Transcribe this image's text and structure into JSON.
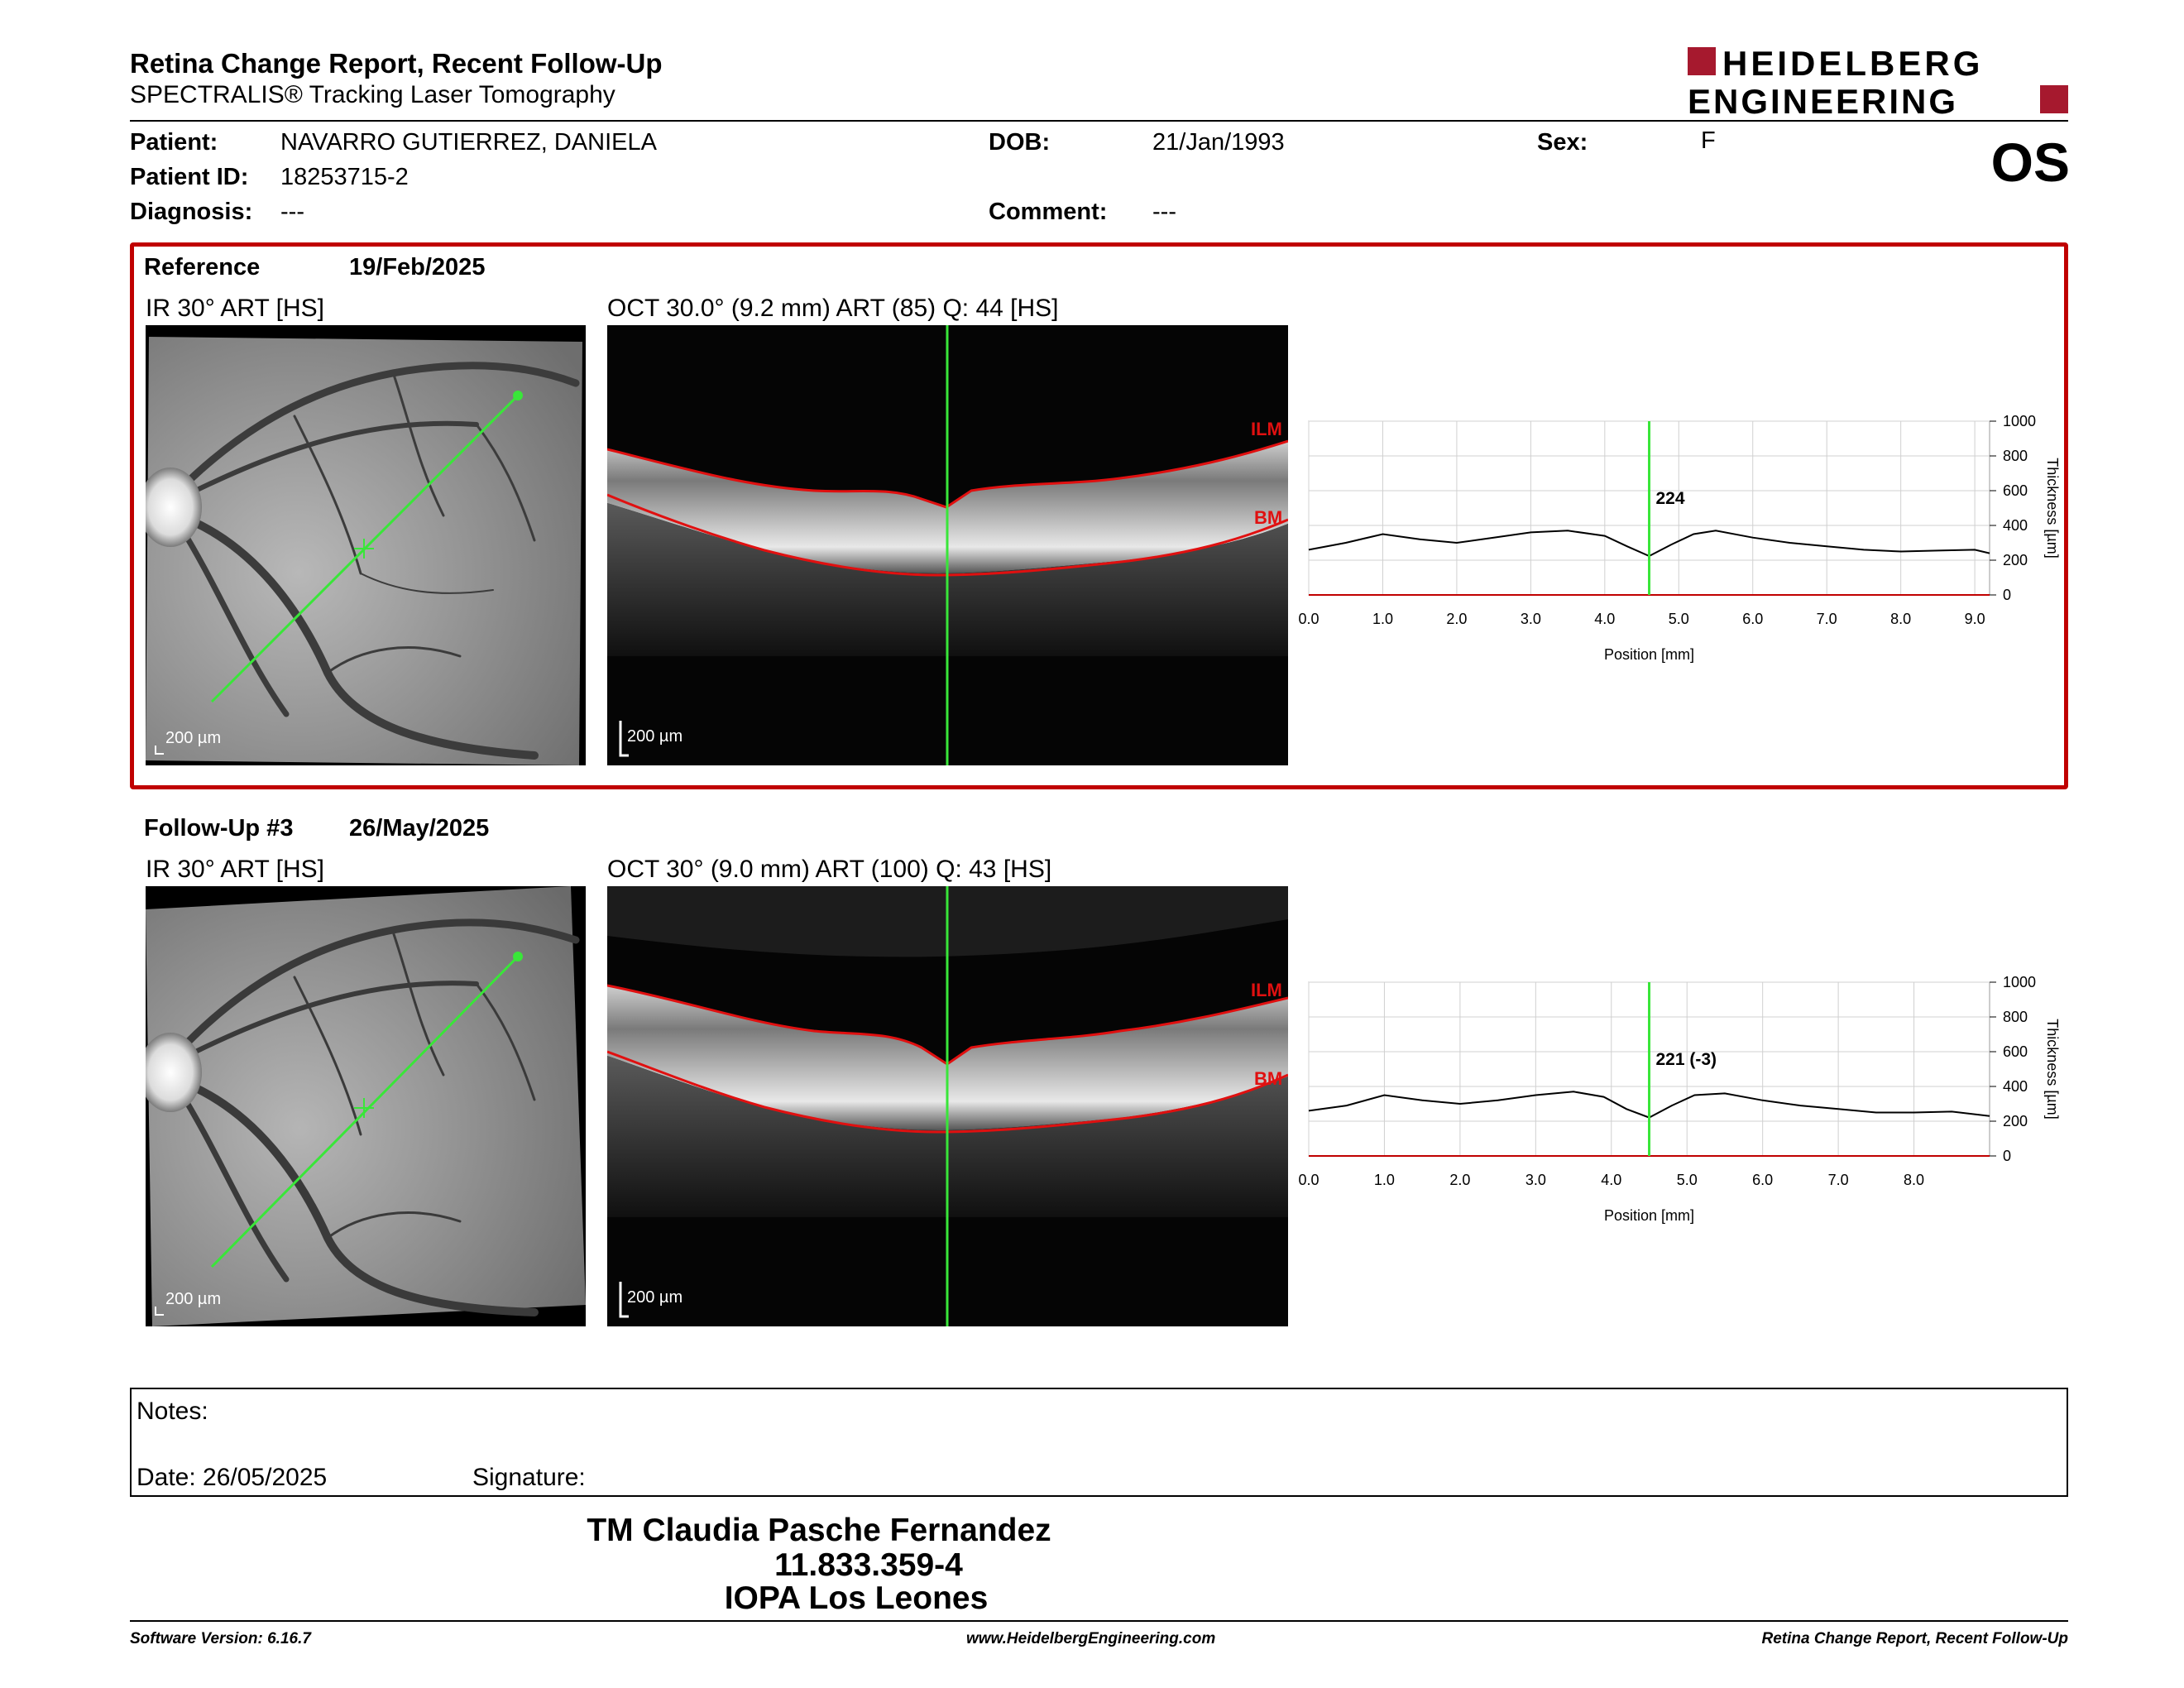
{
  "header": {
    "title": "Retina Change Report, Recent Follow-Up",
    "subtitle": "SPECTRALIS® Tracking Laser Tomography",
    "logo_line1": "HEIDELBERG",
    "logo_line2": "ENGINEERING",
    "eye": "OS",
    "brand_color": "#a6192e"
  },
  "patient": {
    "patient_label": "Patient:",
    "patient_value": "NAVARRO GUTIERREZ, DANIELA",
    "id_label": "Patient ID:",
    "id_value": "18253715-2",
    "diagnosis_label": "Diagnosis:",
    "diagnosis_value": "---",
    "dob_label": "DOB:",
    "dob_value": "21/Jan/1993",
    "comment_label": "Comment:",
    "comment_value": "---",
    "sex_label": "Sex:",
    "sex_value": "F"
  },
  "reference": {
    "label": "Reference",
    "date": "19/Feb/2025",
    "ir_caption": "IR 30° ART [HS]",
    "oct_caption": "OCT 30.0° (9.2 mm) ART (85) Q: 44 [HS]",
    "scale_ir": "200 µm",
    "scale_oct": "200 µm",
    "ilm_label": "ILM",
    "bm_label": "BM",
    "chart_value_label": "224"
  },
  "followup": {
    "label": "Follow-Up #3",
    "date": "26/May/2025",
    "ir_caption": "IR 30° ART [HS]",
    "oct_caption": "OCT 30° (9.0 mm) ART (100) Q: 43 [HS]",
    "scale_ir": "200 µm",
    "scale_oct": "200 µm",
    "ilm_label": "ILM",
    "bm_label": "BM",
    "chart_value_label": "221 (-3)"
  },
  "chart_data": [
    {
      "type": "line",
      "xlabel": "Position [mm]",
      "ylabel": "Thickness [µm]",
      "xlim": [
        0,
        9.2
      ],
      "ylim": [
        0,
        1000
      ],
      "x_ticks": [
        "0.0",
        "1.0",
        "2.0",
        "3.0",
        "4.0",
        "5.0",
        "6.0",
        "7.0",
        "8.0",
        "9.0"
      ],
      "y_ticks": [
        "0",
        "200",
        "400",
        "600",
        "800",
        "1000"
      ],
      "marker_x": 4.6,
      "marker_label": "224",
      "grid": true,
      "x": [
        0,
        0.5,
        1.0,
        1.5,
        2.0,
        2.5,
        3.0,
        3.5,
        4.0,
        4.3,
        4.6,
        4.9,
        5.2,
        5.5,
        6.0,
        6.5,
        7.0,
        7.5,
        8.0,
        8.5,
        9.0,
        9.2
      ],
      "values": [
        260,
        300,
        350,
        320,
        300,
        330,
        360,
        370,
        340,
        280,
        224,
        290,
        350,
        370,
        330,
        300,
        280,
        260,
        250,
        255,
        260,
        240
      ]
    },
    {
      "type": "line",
      "xlabel": "Position [mm]",
      "ylabel": "Thickness [µm]",
      "xlim": [
        0,
        9.0
      ],
      "ylim": [
        0,
        1000
      ],
      "x_ticks": [
        "0.0",
        "1.0",
        "2.0",
        "3.0",
        "4.0",
        "5.0",
        "6.0",
        "7.0",
        "8.0"
      ],
      "y_ticks": [
        "0",
        "200",
        "400",
        "600",
        "800",
        "1000"
      ],
      "marker_x": 4.5,
      "marker_label": "221 (-3)",
      "grid": true,
      "x": [
        0,
        0.5,
        1.0,
        1.5,
        2.0,
        2.5,
        3.0,
        3.5,
        3.9,
        4.2,
        4.5,
        4.8,
        5.1,
        5.5,
        6.0,
        6.5,
        7.0,
        7.5,
        8.0,
        8.5,
        9.0
      ],
      "values": [
        260,
        290,
        350,
        320,
        300,
        320,
        350,
        370,
        340,
        270,
        221,
        290,
        350,
        360,
        320,
        290,
        270,
        250,
        250,
        255,
        230
      ]
    }
  ],
  "notes": {
    "notes_label": "Notes:",
    "date_label": "Date: 26/05/2025",
    "signature_label": "Signature:"
  },
  "signature": {
    "name": "TM Claudia Pasche Fernandez",
    "rut": "11.833.359-4",
    "institution": "IOPA Los Leones"
  },
  "footer": {
    "software": "Software Version: 6.16.7",
    "website": "www.HeidelbergEngineering.com",
    "report": "Retina Change Report, Recent Follow-Up"
  }
}
